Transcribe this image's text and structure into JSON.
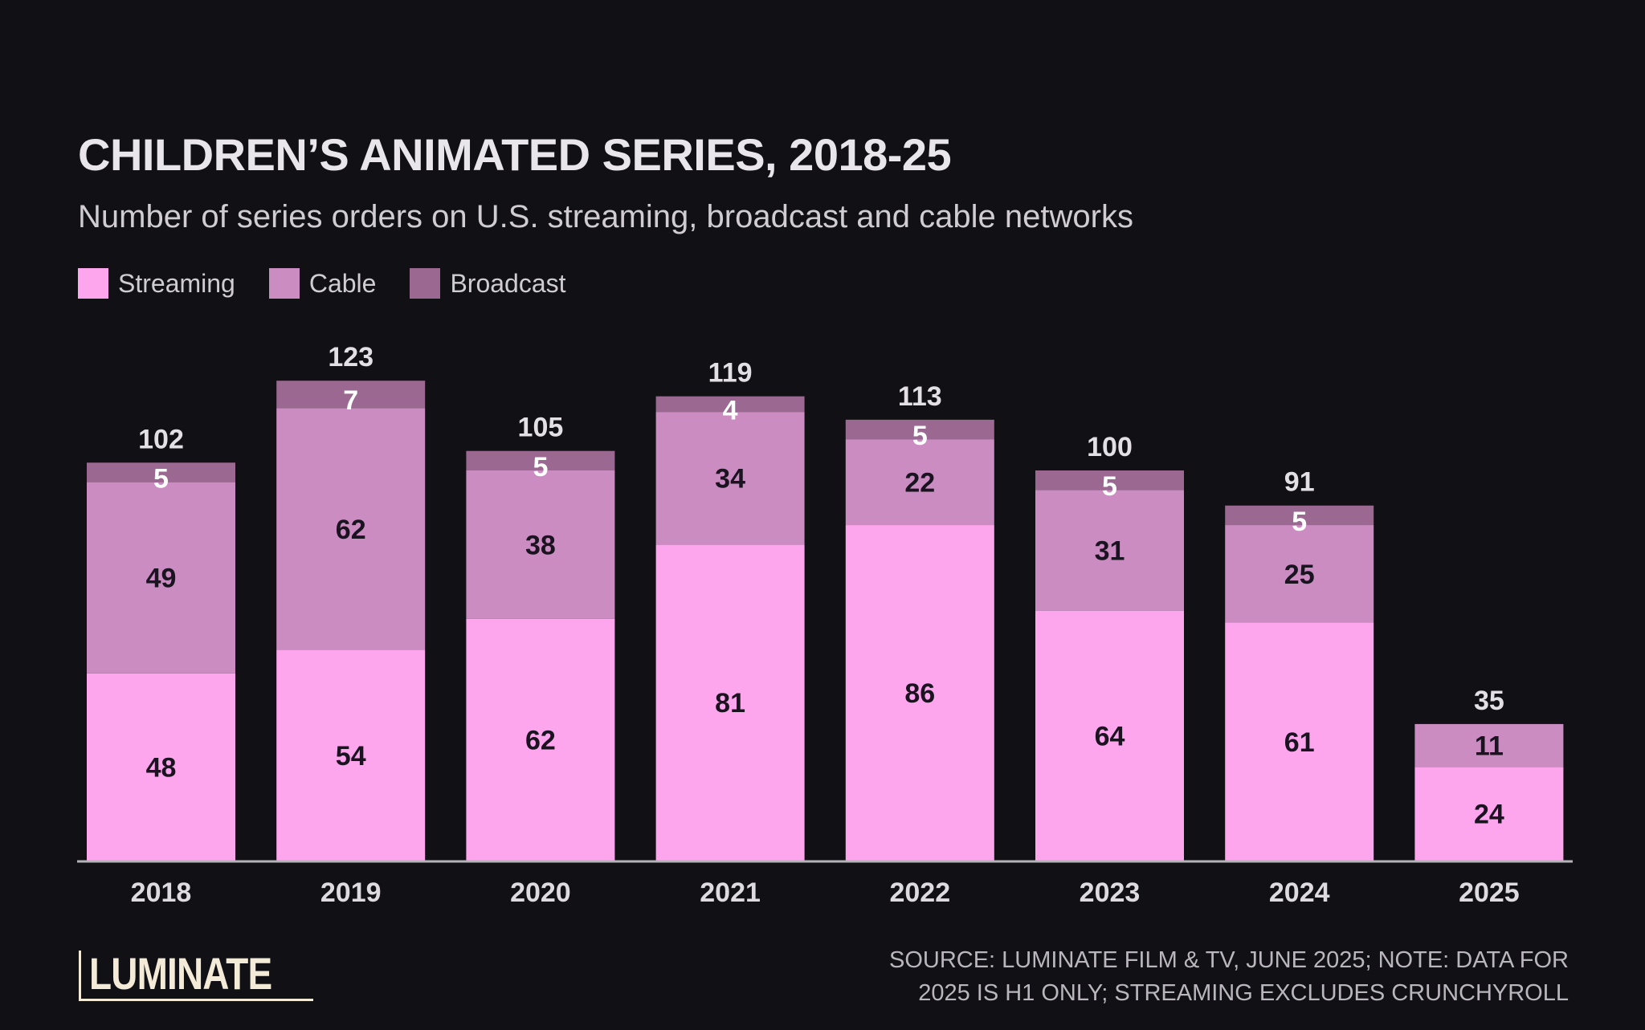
{
  "chart_data": {
    "type": "bar",
    "stacked": true,
    "title": "CHILDREN’S ANIMATED SERIES, 2018-25",
    "subtitle": "Number of series orders on U.S. streaming, broadcast and cable networks",
    "xlabel": "",
    "ylabel": "",
    "ylim": [
      0,
      123
    ],
    "grid": false,
    "legend_position": "top-left",
    "categories": [
      "2018",
      "2019",
      "2020",
      "2021",
      "2022",
      "2023",
      "2024",
      "2025"
    ],
    "series": [
      {
        "name": "Streaming",
        "color": "#fda6ee",
        "label_color": "#1a1320",
        "values": [
          48,
          54,
          62,
          81,
          86,
          64,
          61,
          24
        ]
      },
      {
        "name": "Cable",
        "color": "#cb8cc1",
        "label_color": "#1a1320",
        "values": [
          49,
          62,
          38,
          34,
          22,
          31,
          25,
          11
        ]
      },
      {
        "name": "Broadcast",
        "color": "#9a6890",
        "label_color": "#ffffff",
        "values": [
          5,
          7,
          5,
          4,
          5,
          5,
          5,
          0
        ]
      }
    ],
    "totals": [
      102,
      123,
      105,
      119,
      113,
      100,
      91,
      35
    ]
  },
  "legend": [
    {
      "label": "Streaming",
      "color": "#fda6ee"
    },
    {
      "label": "Cable",
      "color": "#cb8cc1"
    },
    {
      "label": "Broadcast",
      "color": "#9a6890"
    }
  ],
  "footer": {
    "source_line1": "SOURCE: LUMINATE FILM & TV, JUNE 2025; NOTE: DATA FOR",
    "source_line2": "2025 IS H1 ONLY; STREAMING EXCLUDES CRUNCHYROLL",
    "logo": "LUMINATE"
  }
}
